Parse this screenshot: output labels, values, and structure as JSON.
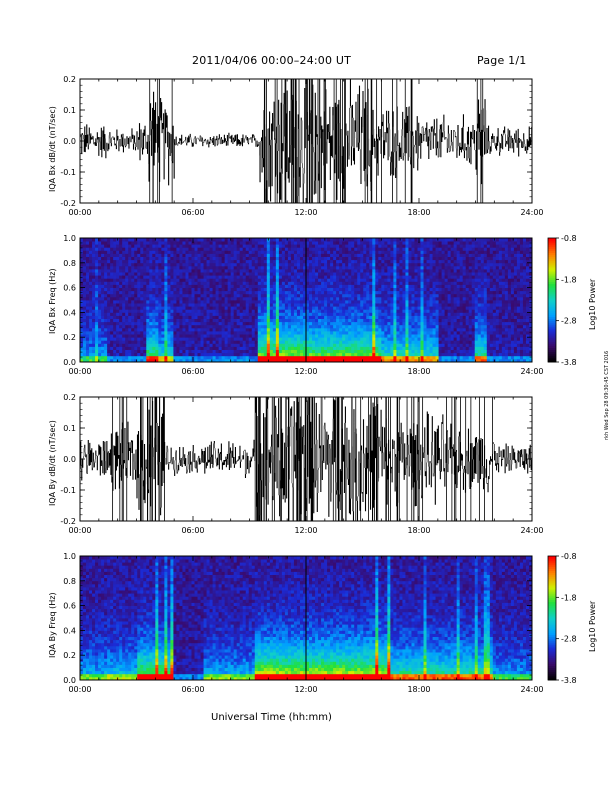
{
  "header": {
    "title": "2011/04/06  00:00–24:00 UT",
    "page": "Page 1/1"
  },
  "footer": {
    "xlabel": "Universal Time (hh:mm)"
  },
  "side_note": "rkh Wed Sep 28 09:30:45 CST 2016",
  "colors": {
    "trace": "#000000",
    "colormap": [
      "#000000",
      "#3a0a6a",
      "#1b2bd6",
      "#00a0ff",
      "#10d0c8",
      "#20e040",
      "#d0f000",
      "#ff8000",
      "#ff0000"
    ]
  },
  "chart_data": [
    {
      "type": "line",
      "name": "bx-dbdt",
      "ylabel": "IQA Bx dB/dt (nT/sec)",
      "x_ticks": [
        "00:00",
        "06:00",
        "12:00",
        "18:00",
        "24:00"
      ],
      "y_ticks": [
        "0.2",
        "0.1",
        "0.0",
        "-0.1",
        "-0.2"
      ],
      "xlim": [
        0,
        24
      ],
      "ylim": [
        -0.2,
        0.2
      ],
      "activity": [
        {
          "start": 0.0,
          "end": 1.5,
          "amp": 0.05
        },
        {
          "start": 1.5,
          "end": 3.0,
          "amp": 0.035
        },
        {
          "start": 3.0,
          "end": 3.6,
          "amp": 0.06
        },
        {
          "start": 3.6,
          "end": 4.0,
          "amp": 0.22
        },
        {
          "start": 4.0,
          "end": 5.0,
          "amp": 0.12
        },
        {
          "start": 5.0,
          "end": 9.5,
          "amp": 0.02
        },
        {
          "start": 9.5,
          "end": 12.0,
          "amp": 0.2
        },
        {
          "start": 12.0,
          "end": 15.5,
          "amp": 0.16
        },
        {
          "start": 15.5,
          "end": 18.0,
          "amp": 0.1
        },
        {
          "start": 18.0,
          "end": 21.0,
          "amp": 0.07
        },
        {
          "start": 21.0,
          "end": 21.6,
          "amp": 0.15
        },
        {
          "start": 21.6,
          "end": 24.0,
          "amp": 0.04
        }
      ]
    },
    {
      "type": "heatmap",
      "name": "bx-spectrogram",
      "ylabel": "IQA Bx Freq (Hz)",
      "x_ticks": [
        "00:00",
        "06:00",
        "12:00",
        "18:00",
        "24:00"
      ],
      "y_ticks": [
        "1.0",
        "0.8",
        "0.6",
        "0.4",
        "0.2",
        "0.0"
      ],
      "xlim": [
        0,
        24
      ],
      "ylim": [
        0,
        1.0
      ],
      "colorbar": {
        "label": "Log10 Power",
        "ticks": [
          "-0.8",
          "-1.8",
          "-2.8",
          "-3.8"
        ],
        "range": [
          -3.8,
          -0.8
        ]
      },
      "activity": [
        {
          "start": 0.0,
          "end": 1.5,
          "amp": 0.25
        },
        {
          "start": 3.5,
          "end": 4.2,
          "amp": 0.6
        },
        {
          "start": 4.2,
          "end": 5.0,
          "amp": 0.4
        },
        {
          "start": 9.5,
          "end": 12.0,
          "amp": 0.7
        },
        {
          "start": 12.0,
          "end": 16.0,
          "amp": 0.65
        },
        {
          "start": 16.0,
          "end": 19.0,
          "amp": 0.45
        },
        {
          "start": 21.0,
          "end": 21.6,
          "amp": 0.5
        }
      ]
    },
    {
      "type": "line",
      "name": "by-dbdt",
      "ylabel": "IQA By dB/dt (nT/sec)",
      "x_ticks": [
        "00:00",
        "06:00",
        "12:00",
        "18:00",
        "24:00"
      ],
      "y_ticks": [
        "0.2",
        "0.1",
        "0.0",
        "-0.1",
        "-0.2"
      ],
      "xlim": [
        0,
        24
      ],
      "ylim": [
        -0.2,
        0.2
      ],
      "activity": [
        {
          "start": 0.0,
          "end": 1.5,
          "amp": 0.06
        },
        {
          "start": 1.5,
          "end": 3.0,
          "amp": 0.09
        },
        {
          "start": 3.0,
          "end": 3.5,
          "amp": 0.13
        },
        {
          "start": 3.5,
          "end": 4.5,
          "amp": 0.22
        },
        {
          "start": 4.5,
          "end": 6.5,
          "amp": 0.04
        },
        {
          "start": 6.5,
          "end": 9.3,
          "amp": 0.05
        },
        {
          "start": 9.3,
          "end": 12.2,
          "amp": 0.22
        },
        {
          "start": 12.2,
          "end": 16.0,
          "amp": 0.21
        },
        {
          "start": 16.0,
          "end": 19.5,
          "amp": 0.12
        },
        {
          "start": 19.5,
          "end": 22.0,
          "amp": 0.09
        },
        {
          "start": 22.0,
          "end": 24.0,
          "amp": 0.04
        }
      ]
    },
    {
      "type": "heatmap",
      "name": "by-spectrogram",
      "ylabel": "IQA By Freq (Hz)",
      "x_ticks": [
        "00:00",
        "06:00",
        "12:00",
        "18:00",
        "24:00"
      ],
      "y_ticks": [
        "1.0",
        "0.8",
        "0.6",
        "0.4",
        "0.2",
        "0.0"
      ],
      "xlim": [
        0,
        24
      ],
      "ylim": [
        0,
        1.0
      ],
      "colorbar": {
        "label": "Log10 Power",
        "ticks": [
          "-0.8",
          "-1.8",
          "-2.8",
          "-3.8"
        ],
        "range": [
          -3.8,
          -0.8
        ]
      },
      "activity": [
        {
          "start": 0.0,
          "end": 1.5,
          "amp": 0.3
        },
        {
          "start": 1.5,
          "end": 3.0,
          "amp": 0.35
        },
        {
          "start": 3.0,
          "end": 5.0,
          "amp": 0.65
        },
        {
          "start": 6.5,
          "end": 9.3,
          "amp": 0.3
        },
        {
          "start": 9.3,
          "end": 12.2,
          "amp": 0.75
        },
        {
          "start": 12.2,
          "end": 16.5,
          "amp": 0.75
        },
        {
          "start": 16.5,
          "end": 22.0,
          "amp": 0.5
        },
        {
          "start": 22.0,
          "end": 24.0,
          "amp": 0.25
        }
      ]
    }
  ]
}
